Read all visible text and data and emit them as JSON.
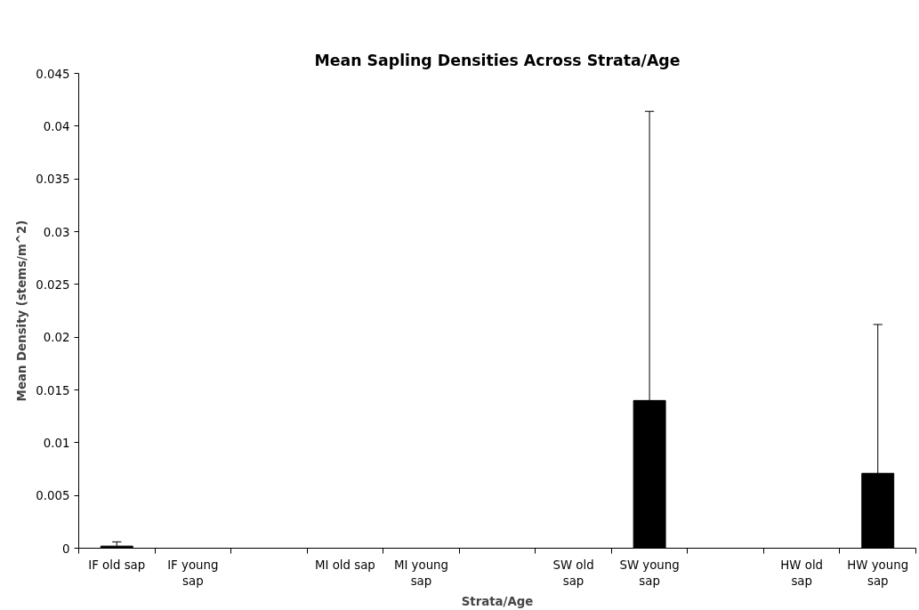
{
  "chart_data": {
    "type": "bar",
    "title": "Mean Sapling Densities Across Strata/Age",
    "xlabel": "Strata/Age",
    "ylabel": "Mean Density (stems/m^2)",
    "categories": [
      "IF old sap",
      "IF young sap",
      null,
      "MI old sap",
      "MI young sap",
      null,
      "SW old sap",
      "SW young sap",
      null,
      "HW old sap",
      "HW young sap"
    ],
    "values": [
      0.0002,
      0,
      null,
      0,
      0,
      null,
      0,
      0.014,
      null,
      0,
      0.0071
    ],
    "errors": [
      [
        0.0002,
        0.0006
      ],
      null,
      null,
      null,
      null,
      null,
      null,
      [
        0.014,
        0.0414
      ],
      null,
      null,
      [
        0.0071,
        0.0212
      ]
    ],
    "color": "#000000",
    "ylim": [
      0,
      0.045
    ],
    "yticks": [
      0,
      0.005,
      0.01,
      0.015,
      0.02,
      0.025,
      0.03,
      0.035,
      0.04,
      0.045
    ],
    "grid": false
  }
}
